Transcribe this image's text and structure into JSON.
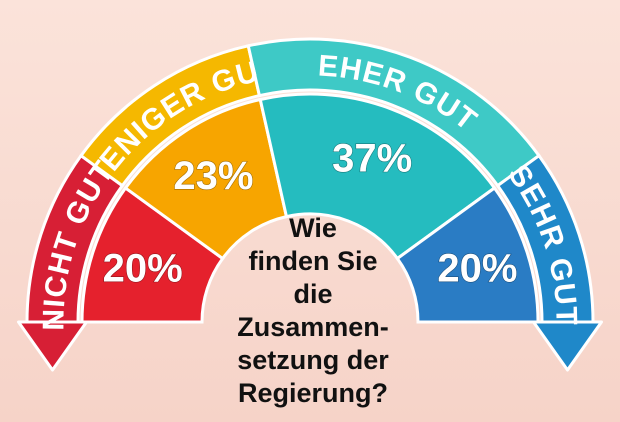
{
  "chart_data": {
    "type": "pie",
    "subtype": "semicircle",
    "categories": [
      "NICHT GUT",
      "WENIGER GUT",
      "EHER GUT",
      "SEHR GUT"
    ],
    "values": [
      20,
      23,
      37,
      20
    ],
    "value_labels": [
      "20%",
      "23%",
      "37%",
      "20%"
    ],
    "colors": [
      "#e5212d",
      "#f7a500",
      "#25bcbf",
      "#2a7cc4"
    ],
    "band_colors": [
      "#d71f35",
      "#f5b800",
      "#3ec9c6",
      "#1f88c9"
    ],
    "center_text": [
      "Wie",
      "finden Sie",
      "die Zusammen-",
      "setzung der",
      "Regierung?"
    ]
  }
}
